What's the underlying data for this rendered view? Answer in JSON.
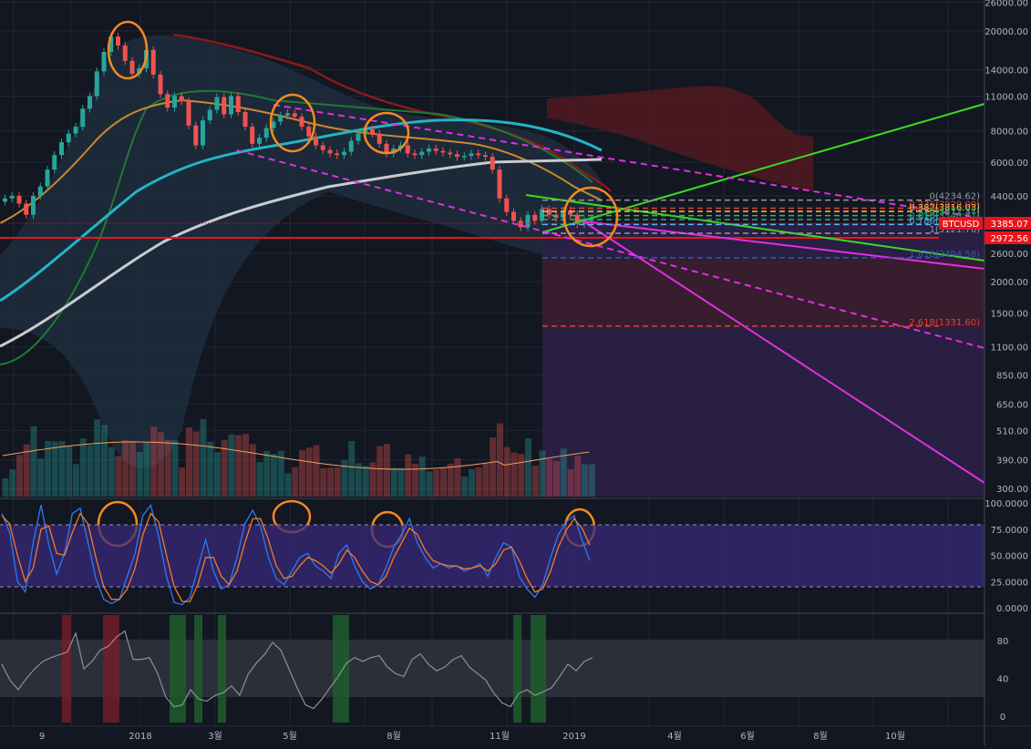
{
  "chart_data": {
    "type": "candlestick",
    "symbol": "BTCUSD",
    "last_price": "3385.07",
    "support_label": "2972.56",
    "price_axis": {
      "scale": "log",
      "range": [
        280,
        26000
      ],
      "ticks": [
        "26000.00",
        "20000.00",
        "14000.00",
        "11000.00",
        "8000.00",
        "6000.00",
        "4400.00",
        "3385.07",
        "2972.56",
        "2600.00",
        "2000.00",
        "1500.00",
        "1100.00",
        "850.00",
        "650.00",
        "510.00",
        "390.00",
        "300.00"
      ]
    },
    "x_axis": {
      "labels": [
        "9",
        "2018",
        "3월",
        "5월",
        "8월",
        "11월",
        "2019",
        "4월",
        "6월",
        "8월",
        "10월"
      ]
    },
    "candles_close": [
      4300,
      4400,
      4100,
      3700,
      4400,
      4800,
      5600,
      6400,
      7200,
      7800,
      8300,
      9800,
      11000,
      13800,
      16500,
      19000,
      17500,
      15200,
      13500,
      14200,
      16800,
      13400,
      11200,
      9900,
      11000,
      10500,
      8400,
      7000,
      8800,
      9700,
      10900,
      9300,
      11000,
      9500,
      8300,
      7100,
      7500,
      8200,
      8700,
      9200,
      9400,
      9100,
      8300,
      7600,
      7000,
      6700,
      6500,
      6400,
      6600,
      7300,
      7800,
      8100,
      7800,
      7100,
      6500,
      6800,
      7000,
      6500,
      6400,
      6600,
      6800,
      6650,
      6550,
      6450,
      6300,
      6350,
      6500,
      6400,
      6300,
      5600,
      4300,
      3800,
      3500,
      3300,
      3700,
      3500,
      3900,
      3700,
      3600,
      3850,
      3700,
      3400,
      3500,
      3550
    ],
    "fib_levels": [
      {
        "label": "0(4234.62)",
        "value": 4234.62,
        "color": "#9598a1"
      },
      {
        "label": "0.236(3929.00)",
        "value": 3929.0,
        "color": "#e83b3b"
      },
      {
        "label": "0.382(3816.03)",
        "value": 3816.03,
        "color": "#f7c443"
      },
      {
        "label": "0.5(3672.37)",
        "value": 3672.37,
        "color": "#4caf50"
      },
      {
        "label": "0.618(3540.37)",
        "value": 3540.37,
        "color": "#26a69a"
      },
      {
        "label": "0.786(3385.07)",
        "value": 3385.07,
        "color": "#56b6f7"
      },
      {
        "label": "1(3121.76)",
        "value": 3121.76,
        "color": "#9598a1"
      },
      {
        "label": "1.618(2494.58)",
        "value": 2494.58,
        "color": "#3f51b5"
      },
      {
        "label": "2.618(1331.60)",
        "value": 1331.6,
        "color": "#e83b3b"
      }
    ],
    "stochastic": {
      "ticks": [
        "100.0000",
        "75.0000",
        "50.0000",
        "25.0000",
        "0.0000"
      ],
      "k": [
        90,
        72,
        25,
        15,
        62,
        98,
        60,
        32,
        52,
        90,
        95,
        62,
        28,
        8,
        4,
        8,
        30,
        52,
        88,
        98,
        68,
        30,
        5,
        3,
        10,
        38,
        65,
        35,
        18,
        22,
        48,
        80,
        93,
        78,
        48,
        28,
        22,
        35,
        48,
        52,
        40,
        35,
        28,
        52,
        60,
        40,
        25,
        18,
        22,
        38,
        58,
        70,
        85,
        62,
        48,
        38,
        42,
        38,
        40,
        35,
        38,
        42,
        30,
        48,
        62,
        58,
        30,
        18,
        10,
        22,
        48,
        70,
        82,
        88,
        65,
        45
      ],
      "d": [
        88,
        80,
        50,
        25,
        38,
        75,
        78,
        52,
        50,
        72,
        90,
        80,
        48,
        20,
        8,
        8,
        18,
        38,
        70,
        90,
        82,
        50,
        20,
        6,
        6,
        22,
        48,
        48,
        30,
        22,
        35,
        62,
        85,
        85,
        65,
        40,
        28,
        30,
        40,
        48,
        45,
        40,
        33,
        42,
        55,
        48,
        35,
        25,
        22,
        30,
        48,
        62,
        76,
        70,
        55,
        45,
        42,
        40,
        40,
        37,
        38,
        40,
        35,
        42,
        55,
        58,
        45,
        28,
        15,
        18,
        35,
        58,
        74,
        85,
        76,
        60
      ]
    },
    "lower_osc": {
      "ticks": [
        "80",
        "40",
        "0"
      ],
      "values": [
        55,
        38,
        28,
        40,
        50,
        58,
        62,
        65,
        68,
        88,
        50,
        58,
        70,
        74,
        84,
        90,
        60,
        60,
        62,
        45,
        20,
        10,
        12,
        28,
        18,
        16,
        22,
        25,
        32,
        22,
        44,
        56,
        65,
        78,
        70,
        50,
        30,
        12,
        8,
        18,
        30,
        42,
        56,
        62,
        58,
        62,
        64,
        52,
        45,
        42,
        60,
        66,
        55,
        48,
        52,
        60,
        64,
        52,
        45,
        38,
        24,
        14,
        10,
        24,
        28,
        22,
        26,
        30,
        42,
        55,
        48,
        58,
        62
      ]
    }
  }
}
